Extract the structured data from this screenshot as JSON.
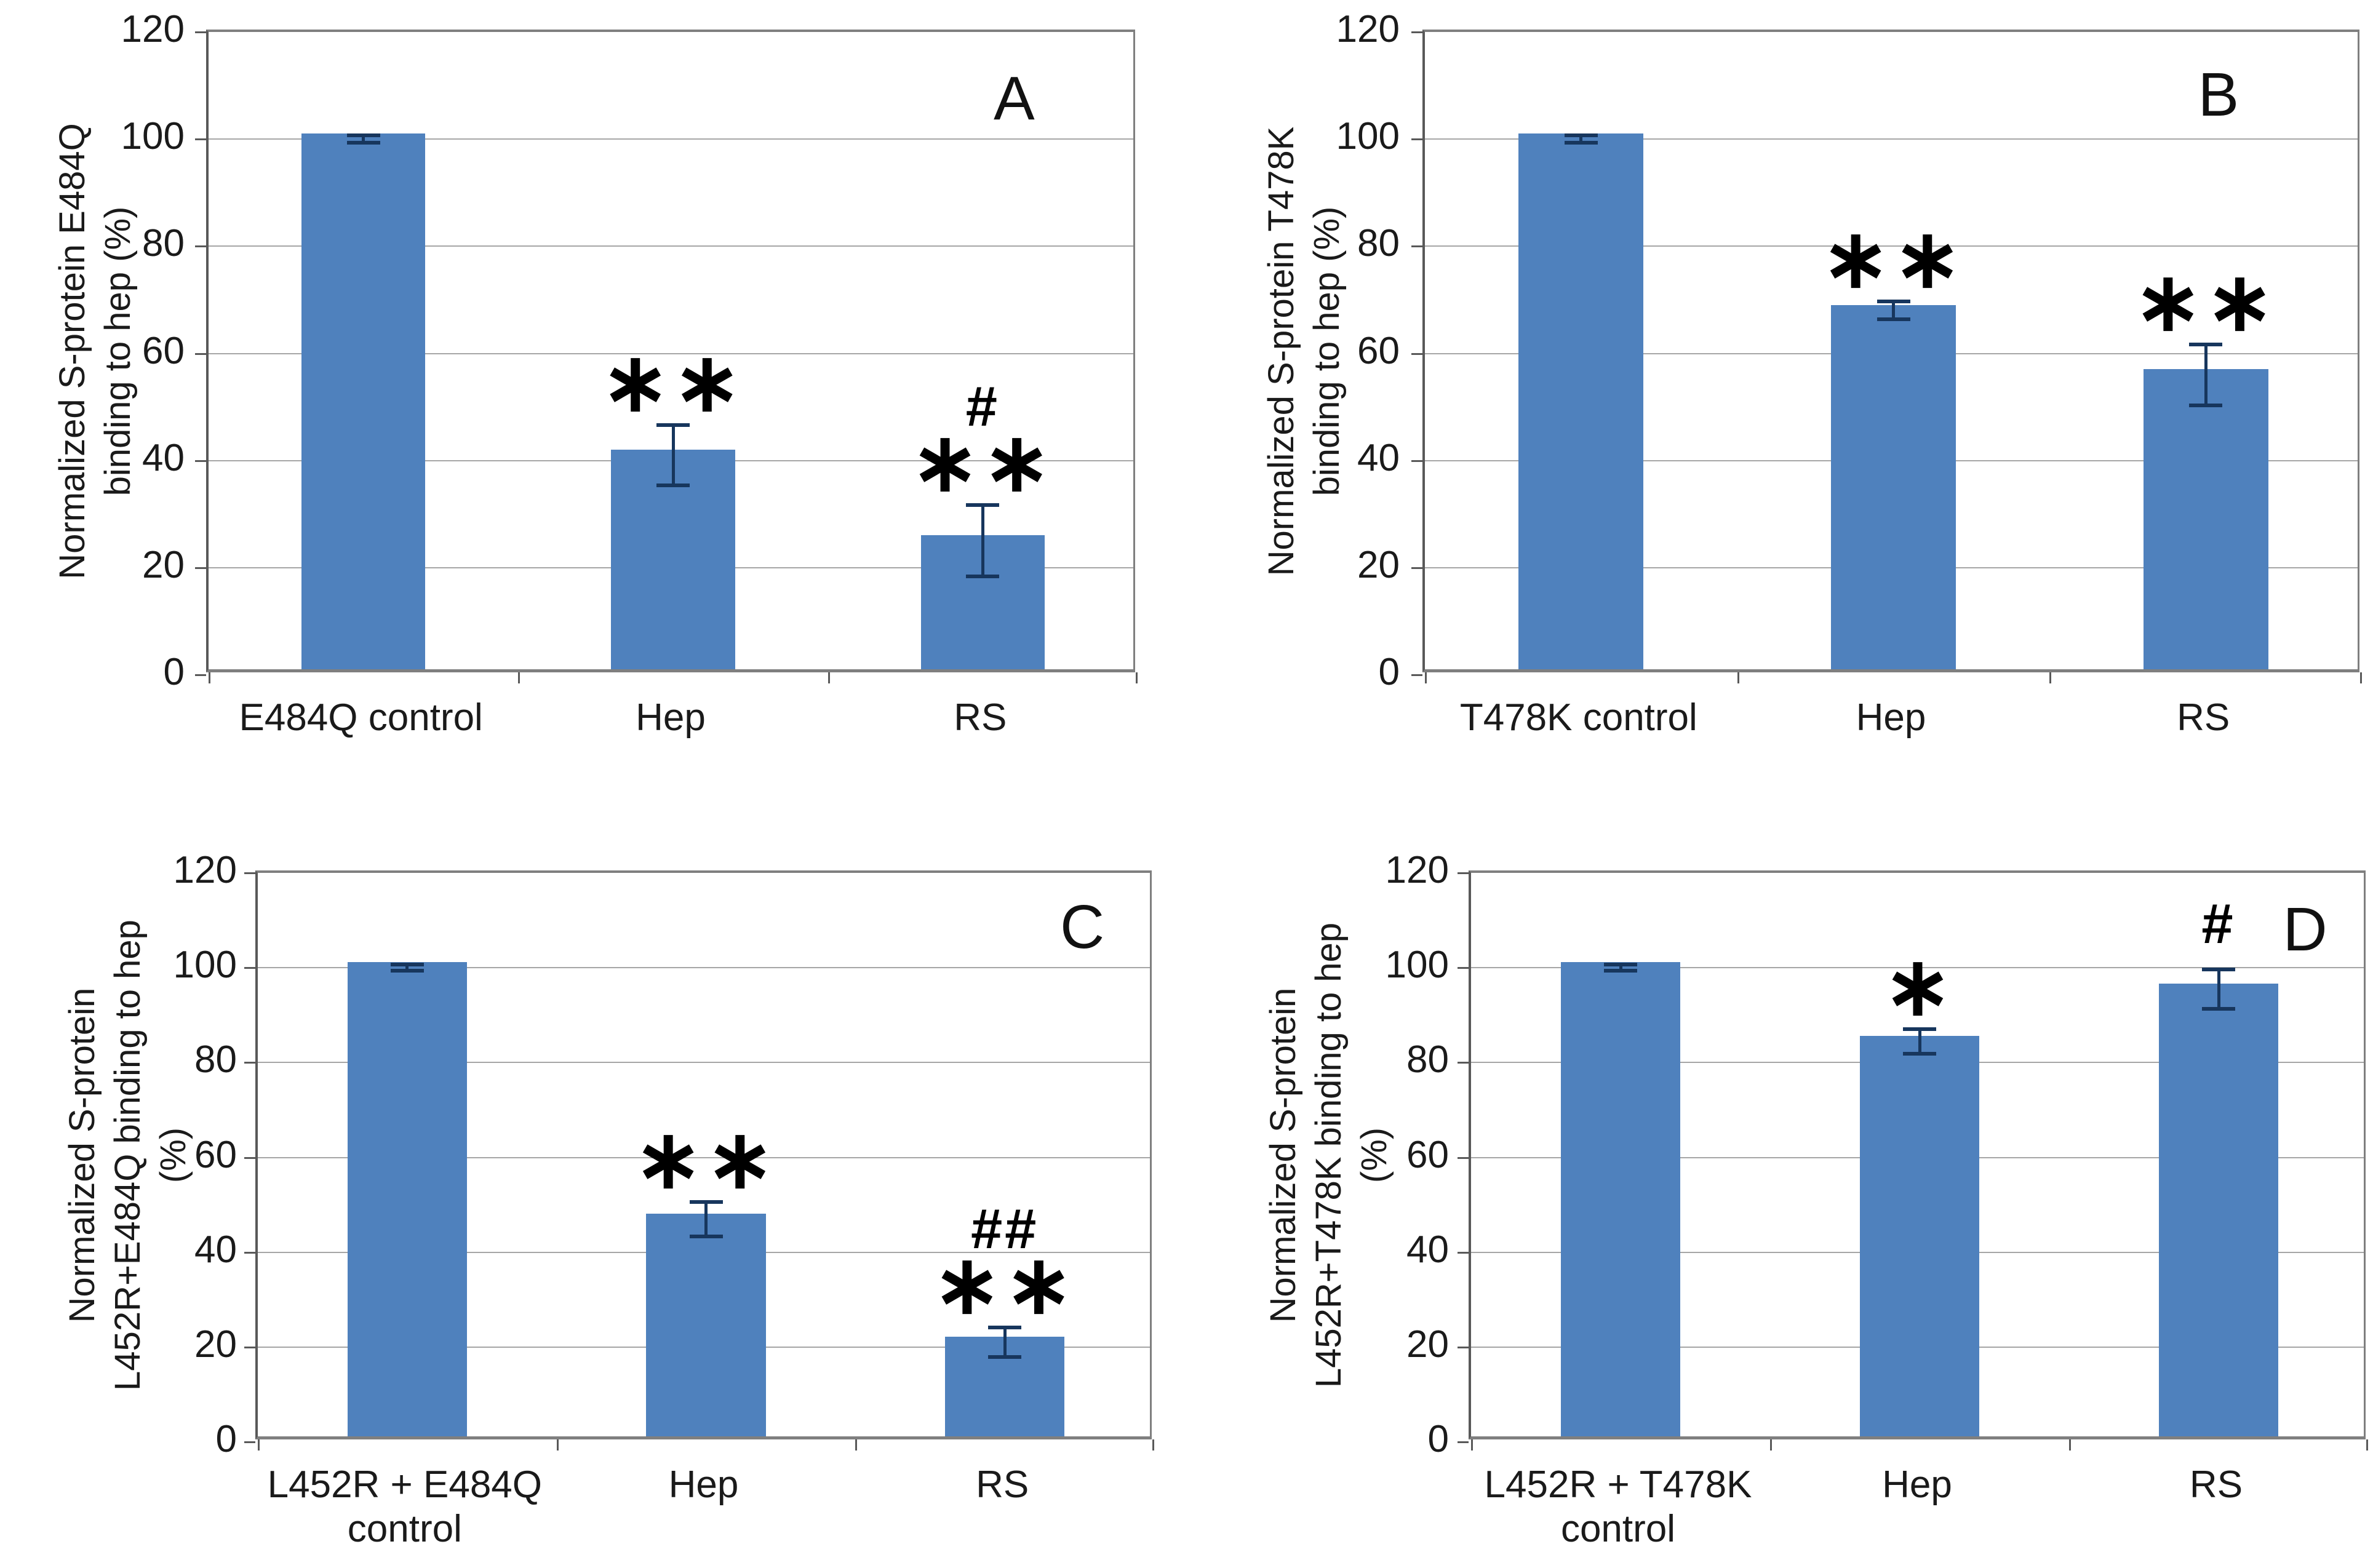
{
  "colors": {
    "bar": "#4f81bd",
    "error_bar": "#17365d",
    "gridline": "#a6a6a6",
    "axis": "#595959",
    "frame": "#7f7f7f",
    "text": "#1a1a1a"
  },
  "chart_data": [
    {
      "panel_letter": "A",
      "type": "bar",
      "ylabel_lines": [
        "Normalized S-protein E484Q",
        "binding to hep (%)"
      ],
      "ylabel": "Normalized S-protein E484Q binding to hep (%)",
      "ylim": [
        0,
        120
      ],
      "yticks": [
        120,
        100,
        80,
        60,
        40,
        20,
        0
      ],
      "grid": true,
      "legend": false,
      "categories": [
        "E484Q control",
        "Hep",
        "RS"
      ],
      "values": [
        100,
        41,
        25
      ],
      "errors": [
        1,
        6,
        7
      ],
      "annotations": [
        [],
        [
          "**"
        ],
        [
          "#",
          "**"
        ]
      ]
    },
    {
      "panel_letter": "B",
      "type": "bar",
      "ylabel_lines": [
        "Normalized S-protein T478K",
        "binding to hep (%)"
      ],
      "ylabel": "Normalized S-protein T478K binding to hep (%)",
      "ylim": [
        0,
        120
      ],
      "yticks": [
        120,
        100,
        80,
        60,
        40,
        20,
        0
      ],
      "grid": true,
      "legend": false,
      "categories": [
        "T478K control",
        "Hep",
        "RS"
      ],
      "values": [
        100,
        68,
        56
      ],
      "errors": [
        1,
        2,
        6
      ],
      "annotations": [
        [],
        [
          "**"
        ],
        [
          "**"
        ]
      ]
    },
    {
      "panel_letter": "C",
      "type": "bar",
      "ylabel_lines": [
        "Normalized S-protein",
        "L452R+E484Q binding to hep",
        "(%)"
      ],
      "ylabel": "Normalized S-protein L452R+E484Q binding to hep (%)",
      "ylim": [
        0,
        120
      ],
      "yticks": [
        120,
        100,
        80,
        60,
        40,
        20,
        0
      ],
      "grid": true,
      "legend": false,
      "categories": [
        "L452R + E484Q\ncontrol",
        "Hep",
        "RS"
      ],
      "values": [
        100,
        47,
        21
      ],
      "errors": [
        1,
        4,
        3.5
      ],
      "annotations": [
        [],
        [
          "**"
        ],
        [
          "##",
          "**"
        ]
      ]
    },
    {
      "panel_letter": "D",
      "type": "bar",
      "ylabel_lines": [
        "Normalized S-protein",
        "L452R+T478K binding to hep",
        "(%)"
      ],
      "ylabel": "Normalized S-protein L452R+T478K binding to hep (%)",
      "ylim": [
        0,
        120
      ],
      "yticks": [
        120,
        100,
        80,
        60,
        40,
        20,
        0
      ],
      "grid": true,
      "legend": false,
      "categories": [
        "L452R + T478K\ncontrol",
        "Hep",
        "RS"
      ],
      "values": [
        100,
        84.5,
        95.5
      ],
      "errors": [
        1,
        3,
        4.5
      ],
      "annotations": [
        [],
        [
          "*"
        ],
        [
          "#"
        ]
      ]
    }
  ]
}
